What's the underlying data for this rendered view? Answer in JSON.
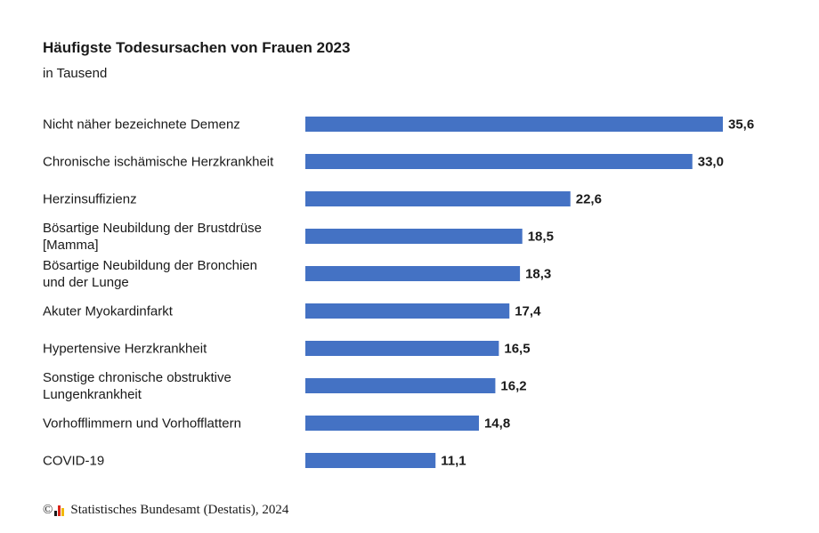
{
  "header": {
    "title": "Häufigste Todesursachen von Frauen 2023",
    "subtitle": "in Tausend"
  },
  "footer": {
    "copyright_symbol": "©",
    "source": "Statistisches Bundesamt (Destatis), 2024",
    "logo_icon": "destatis-logo-icon"
  },
  "colors": {
    "bar": "#4472c4",
    "text": "#1a1a1a"
  },
  "chart_data": {
    "type": "bar",
    "orientation": "horizontal",
    "title": "Häufigste Todesursachen von Frauen 2023",
    "subtitle": "in Tausend",
    "xlabel": "",
    "ylabel": "",
    "xlim": [
      0,
      35.6
    ],
    "grid": false,
    "categories": [
      [
        "Nicht näher bezeichnete Demenz"
      ],
      [
        "Chronische ischämische Herzkrankheit"
      ],
      [
        "Herzinsuffizienz"
      ],
      [
        "Bösartige Neubildung der Brustdrüse",
        "[Mamma]"
      ],
      [
        "Bösartige Neubildung der Bronchien",
        "und der Lunge"
      ],
      [
        "Akuter Myokardinfarkt"
      ],
      [
        "Hypertensive Herzkrankheit"
      ],
      [
        "Sonstige chronische obstruktive",
        "Lungenkrankheit"
      ],
      [
        "Vorhofflimmern und Vorhofflattern"
      ],
      [
        "COVID-19"
      ]
    ],
    "values": [
      35.6,
      33.0,
      22.6,
      18.5,
      18.3,
      17.4,
      16.5,
      16.2,
      14.8,
      11.1
    ],
    "value_labels": [
      "35,6",
      "33,0",
      "22,6",
      "18,5",
      "18,3",
      "17,4",
      "16,5",
      "16,2",
      "14,8",
      "11,1"
    ]
  }
}
